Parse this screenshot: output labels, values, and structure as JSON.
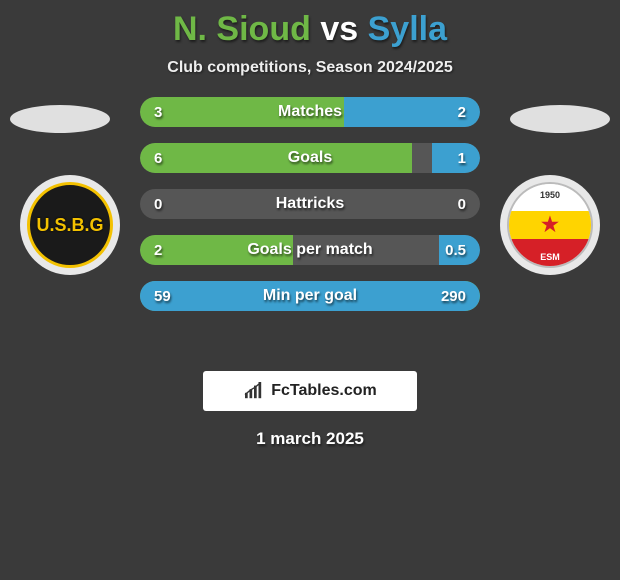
{
  "title": {
    "player1": "N. Sioud",
    "vs": "vs",
    "player2": "Sylla",
    "player1_color": "#6fb846",
    "player2_color": "#3ca0d0"
  },
  "subtitle": "Club competitions, Season 2024/2025",
  "date": "1 march 2025",
  "branding_text": "FcTables.com",
  "colors": {
    "left_bar": "#6fb846",
    "right_bar": "#3ca0d0",
    "bar_track": "#565656",
    "background": "#3a3a3a"
  },
  "teams": {
    "left": {
      "abbr": "U.S.B.G"
    },
    "right": {
      "abbr": "ESM",
      "year": "1950"
    }
  },
  "stats": [
    {
      "label": "Matches",
      "left_value": "3",
      "right_value": "2",
      "left_pct": 60,
      "right_pct": 40
    },
    {
      "label": "Goals",
      "left_value": "6",
      "right_value": "1",
      "left_pct": 80,
      "right_pct": 14
    },
    {
      "label": "Hattricks",
      "left_value": "0",
      "right_value": "0",
      "left_pct": 0,
      "right_pct": 0
    },
    {
      "label": "Goals per match",
      "left_value": "2",
      "right_value": "0.5",
      "left_pct": 45,
      "right_pct": 12
    },
    {
      "label": "Min per goal",
      "left_value": "59",
      "right_value": "290",
      "left_pct": 100,
      "right_pct": 100
    }
  ]
}
